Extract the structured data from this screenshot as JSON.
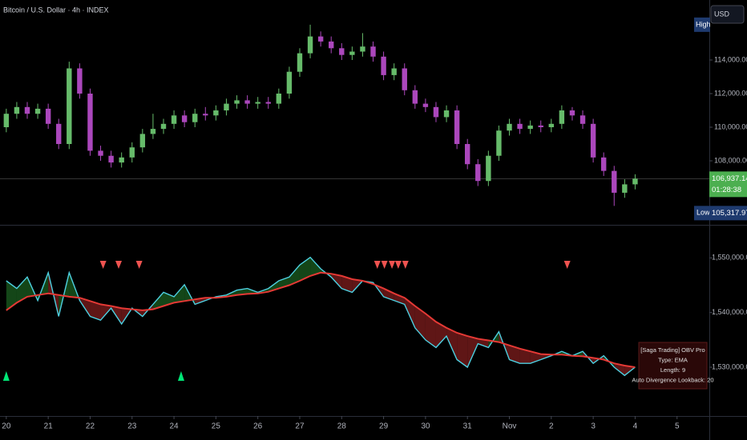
{
  "chart_data": [
    {
      "type": "candlestick",
      "title": "Bitcoin / U.S. Dollar · 4h · INDEX",
      "currency": "USD",
      "up_color": "#66bb6a",
      "down_color": "#ab47bc",
      "x": [
        20,
        20.25,
        20.5,
        20.75,
        21,
        21.25,
        21.5,
        21.75,
        22,
        22.25,
        22.5,
        22.75,
        23,
        23.25,
        23.5,
        23.75,
        24,
        24.25,
        24.5,
        24.75,
        25,
        25.25,
        25.5,
        25.75,
        26,
        26.25,
        26.5,
        26.75,
        27,
        27.25,
        27.5,
        27.75,
        28,
        28.25,
        28.5,
        28.75,
        29,
        29.25,
        29.5,
        29.75,
        30,
        30.25,
        30.5,
        30.75,
        31,
        31.25,
        31.5,
        31.75,
        32,
        32.25,
        32.5,
        32.75,
        33,
        33.25,
        33.5,
        33.75,
        34,
        34.25,
        34.5,
        34.75,
        35
      ],
      "open": [
        110000,
        110800,
        111200,
        110800,
        111100,
        110200,
        109000,
        113500,
        112000,
        108600,
        108300,
        107900,
        108200,
        108800,
        109600,
        109900,
        110200,
        110700,
        110300,
        110800,
        110700,
        111000,
        111400,
        111600,
        111400,
        111500,
        111400,
        112000,
        113300,
        114400,
        115400,
        115100,
        114700,
        114300,
        114500,
        114800,
        114200,
        113100,
        113500,
        112200,
        111400,
        111200,
        110600,
        111000,
        109000,
        107800,
        106800,
        108300,
        109800,
        110200,
        109900,
        110100,
        110000,
        110200,
        111000,
        110700,
        110200,
        108200,
        107400,
        106100,
        106600
      ],
      "high": [
        111100,
        111500,
        111500,
        111400,
        111400,
        110500,
        113900,
        113800,
        112300,
        108900,
        108600,
        108500,
        109100,
        109900,
        110800,
        110500,
        111000,
        111000,
        111100,
        111200,
        111300,
        111700,
        111900,
        111900,
        111800,
        111800,
        112300,
        113600,
        114700,
        116100,
        115700,
        115400,
        115000,
        114800,
        115600,
        115100,
        114500,
        113800,
        113800,
        112500,
        111700,
        111500,
        111300,
        111300,
        109300,
        108100,
        108600,
        110100,
        110500,
        110500,
        110400,
        110400,
        110500,
        111300,
        111200,
        111000,
        110500,
        108500,
        107700,
        106900,
        107200
      ],
      "low": [
        109700,
        110500,
        110500,
        110500,
        109900,
        108700,
        108700,
        111700,
        108300,
        108000,
        107600,
        107600,
        107900,
        108500,
        109300,
        109600,
        109900,
        110000,
        110000,
        110400,
        110400,
        110700,
        111100,
        111100,
        111100,
        111100,
        111100,
        111700,
        113000,
        114100,
        114800,
        114400,
        114000,
        114000,
        114200,
        113900,
        112800,
        112800,
        111900,
        111100,
        110900,
        110300,
        110300,
        108700,
        107500,
        106500,
        106500,
        108000,
        109500,
        109600,
        109600,
        109700,
        109700,
        109900,
        110400,
        109900,
        107900,
        107100,
        105317.97,
        105800,
        106300
      ],
      "close": [
        110800,
        111200,
        110800,
        111100,
        110200,
        109000,
        113500,
        112000,
        108600,
        108300,
        107900,
        108200,
        108800,
        109600,
        109900,
        110200,
        110700,
        110300,
        110800,
        110700,
        111000,
        111400,
        111600,
        111400,
        111500,
        111400,
        112000,
        113300,
        114400,
        115400,
        115100,
        114700,
        114300,
        114500,
        114800,
        114200,
        113100,
        113500,
        112200,
        111400,
        111200,
        110600,
        111000,
        109000,
        107800,
        106800,
        108300,
        109800,
        110200,
        109900,
        110100,
        110000,
        110200,
        111000,
        110700,
        110200,
        108200,
        107400,
        106100,
        106600,
        106937.14
      ],
      "xlim": [
        19.85,
        36.77
      ],
      "ylim": [
        104240,
        117570
      ],
      "yticks": [
        {
          "value": 108000,
          "label": "108,000.00"
        },
        {
          "value": 110000,
          "label": "110,000.00"
        },
        {
          "value": 112000,
          "label": "112,000.00"
        },
        {
          "value": 114000,
          "label": "114,000.00"
        }
      ],
      "high_badge": "High",
      "last_price": {
        "value": 106937.14,
        "label": "106,937.14",
        "countdown": "01:28:38"
      },
      "low_badge": {
        "label": "Low",
        "value": 105317.97,
        "value_label": "105,317.97"
      }
    },
    {
      "type": "line",
      "x": [
        20,
        20.25,
        20.5,
        20.75,
        21,
        21.25,
        21.5,
        21.75,
        22,
        22.25,
        22.5,
        22.75,
        23,
        23.25,
        23.5,
        23.75,
        24,
        24.25,
        24.5,
        24.75,
        25,
        25.25,
        25.5,
        25.75,
        26,
        26.25,
        26.5,
        26.75,
        27,
        27.25,
        27.5,
        27.75,
        28,
        28.25,
        28.5,
        28.75,
        29,
        29.25,
        29.5,
        29.75,
        30,
        30.25,
        30.5,
        30.75,
        31,
        31.25,
        31.5,
        31.75,
        32,
        32.25,
        32.5,
        32.75,
        33,
        33.25,
        33.5,
        33.75,
        34,
        34.25,
        34.5,
        34.75,
        35
      ],
      "series": [
        {
          "color": "#4dd0e1",
          "values": [
            1545800,
            1544400,
            1546500,
            1542200,
            1547300,
            1539300,
            1547300,
            1542200,
            1539300,
            1538600,
            1540800,
            1537900,
            1540800,
            1539300,
            1541500,
            1543700,
            1542900,
            1545100,
            1541500,
            1542200,
            1542900,
            1543200,
            1544100,
            1544400,
            1543700,
            1544400,
            1545800,
            1546500,
            1548700,
            1550100,
            1548000,
            1546500,
            1544400,
            1543700,
            1545800,
            1545500,
            1542900,
            1542200,
            1541500,
            1537200,
            1535000,
            1533600,
            1535700,
            1531400,
            1530000,
            1534300,
            1533600,
            1536500,
            1531400,
            1530700,
            1530700,
            1531400,
            1532100,
            1532900,
            1532100,
            1532900,
            1530700,
            1532100,
            1530000,
            1528500,
            1530000
          ]
        },
        {
          "color": "#e53935",
          "values": [
            1540400,
            1541800,
            1542900,
            1543200,
            1543500,
            1543200,
            1542900,
            1542700,
            1542100,
            1541500,
            1541200,
            1540800,
            1540600,
            1540400,
            1540600,
            1541200,
            1541800,
            1542100,
            1542400,
            1542700,
            1542700,
            1542900,
            1543200,
            1543400,
            1543500,
            1543800,
            1544400,
            1545000,
            1545800,
            1546700,
            1547300,
            1547100,
            1546700,
            1546100,
            1545800,
            1545200,
            1544400,
            1543500,
            1542700,
            1541200,
            1539800,
            1538300,
            1537200,
            1536300,
            1535700,
            1535200,
            1534900,
            1534600,
            1534000,
            1533400,
            1532900,
            1532400,
            1532300,
            1532300,
            1532100,
            1532000,
            1531700,
            1531400,
            1530700,
            1530300,
            1530000
          ]
        }
      ],
      "fill_up_color": "#1b5e20",
      "fill_down_color": "#7f1d1d",
      "signals": {
        "bearish_x": [
          22.31,
          22.68,
          23.17,
          28.85,
          29.02,
          29.2,
          29.35,
          29.52,
          33.38
        ],
        "bearish_color": "#ef5350",
        "bullish_x": [
          20.0,
          24.17
        ],
        "bullish_color": "#00e676"
      },
      "xlim": [
        19.85,
        36.77
      ],
      "xticks": [
        20,
        21,
        22,
        23,
        24,
        25,
        26,
        27,
        28,
        29,
        30,
        31,
        {
          "value": 32,
          "label": "Nov"
        },
        {
          "value": 33,
          "label": "2"
        },
        {
          "value": 34,
          "label": "3"
        },
        {
          "value": 35,
          "label": "4"
        },
        {
          "value": 36,
          "label": "5"
        }
      ],
      "ylim": [
        1521370,
        1555610
      ],
      "yticks": [
        {
          "value": 1530000,
          "label": "1,530,000.00"
        },
        {
          "value": 1540000,
          "label": "1,540,000.00"
        },
        {
          "value": 1550000,
          "label": "1,550,000.00"
        }
      ],
      "legend_box": [
        "[Saga Trading] OBV Pro",
        "Type: EMA",
        "Length: 9",
        "Auto Divergence Lookback: 20"
      ]
    }
  ]
}
